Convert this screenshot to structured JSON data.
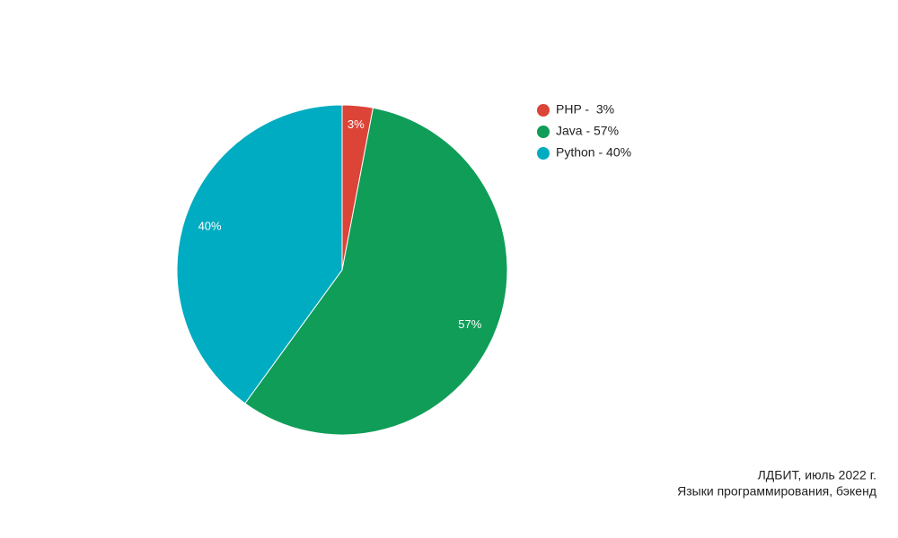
{
  "chart_data": {
    "type": "pie",
    "categories": [
      "PHP -  3%",
      "Java - 57%",
      "Python - 40%"
    ],
    "values": [
      3,
      57,
      40
    ],
    "value_labels": [
      "3%",
      "57%",
      "40%"
    ],
    "colors": [
      "#db4437",
      "#0f9d58",
      "#00acc1"
    ],
    "legend": "right",
    "source": "ЛДБИТ, июль 2022 г.",
    "caption": "Языки программирования, бэкенд"
  }
}
